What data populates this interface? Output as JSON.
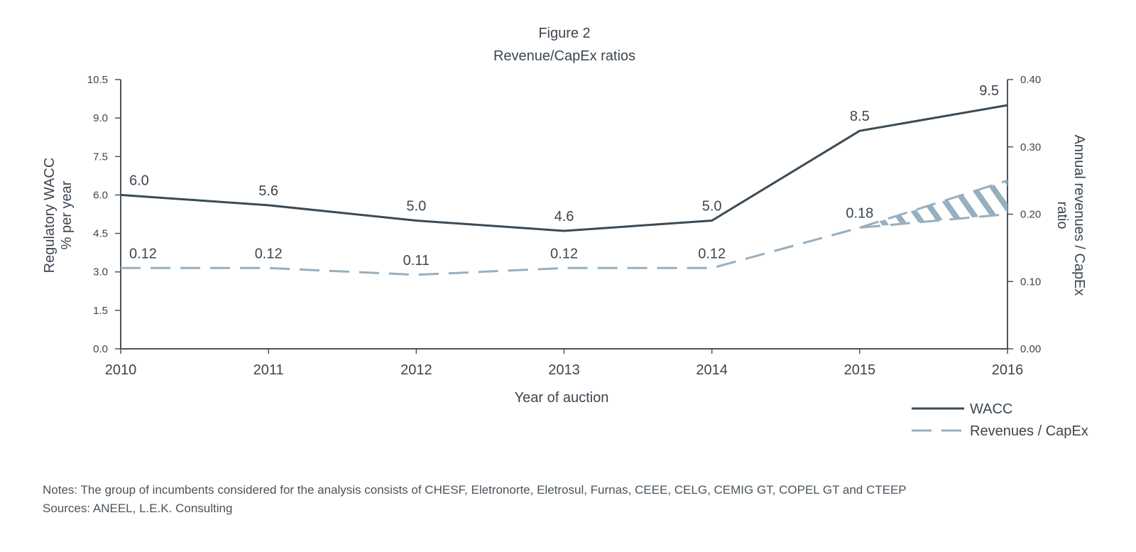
{
  "chart_data": {
    "type": "line",
    "title": "Figure 2",
    "subtitle": "Revenue/CapEx ratios",
    "xlabel": "Year of auction",
    "ylabel_left": [
      "Regulatory WACC",
      "% per year"
    ],
    "ylabel_right": [
      "Annual revenues / CapEx",
      "ratio"
    ],
    "categories": [
      "2010",
      "2011",
      "2012",
      "2013",
      "2014",
      "2015",
      "2016"
    ],
    "y_left": {
      "range": [
        0,
        10.5
      ],
      "ticks": [
        "0.0",
        "1.5",
        "3.0",
        "4.5",
        "6.0",
        "7.5",
        "9.0",
        "10.5"
      ]
    },
    "y_right": {
      "range": [
        0,
        0.4
      ],
      "ticks": [
        "0.00",
        "0.10",
        "0.20",
        "0.30",
        "0.40"
      ]
    },
    "series": [
      {
        "name": "WACC",
        "axis": "left",
        "style": "solid",
        "color": "#3b4a55",
        "values": [
          6.0,
          5.6,
          5.0,
          4.6,
          5.0,
          8.5,
          9.5
        ],
        "labels": [
          "6.0",
          "5.6",
          "5.0",
          "4.6",
          "5.0",
          "8.5",
          "9.5"
        ]
      },
      {
        "name": "Revenues / CapEx",
        "axis": "right",
        "style": "dashed",
        "color": "#97afbf",
        "values": [
          0.12,
          0.12,
          0.11,
          0.12,
          0.12,
          0.18,
          0.2
        ],
        "labels": [
          "0.12",
          "0.12",
          "0.11",
          "0.12",
          "0.12",
          "0.18",
          ""
        ],
        "range_band": {
          "from": "2015",
          "to": "2016",
          "low_end": 0.2,
          "high_end": 0.25
        }
      }
    ],
    "grid": false,
    "legend_position": "bottom-right"
  },
  "notes": {
    "notes_line": "Notes: The group of incumbents considered for the analysis consists of CHESF, Eletronorte, Eletrosul, Furnas, CEEE, CELG, CEMIG GT, COPEL GT and CTEEP",
    "sources_line": "Sources: ANEEL, L.E.K. Consulting"
  }
}
